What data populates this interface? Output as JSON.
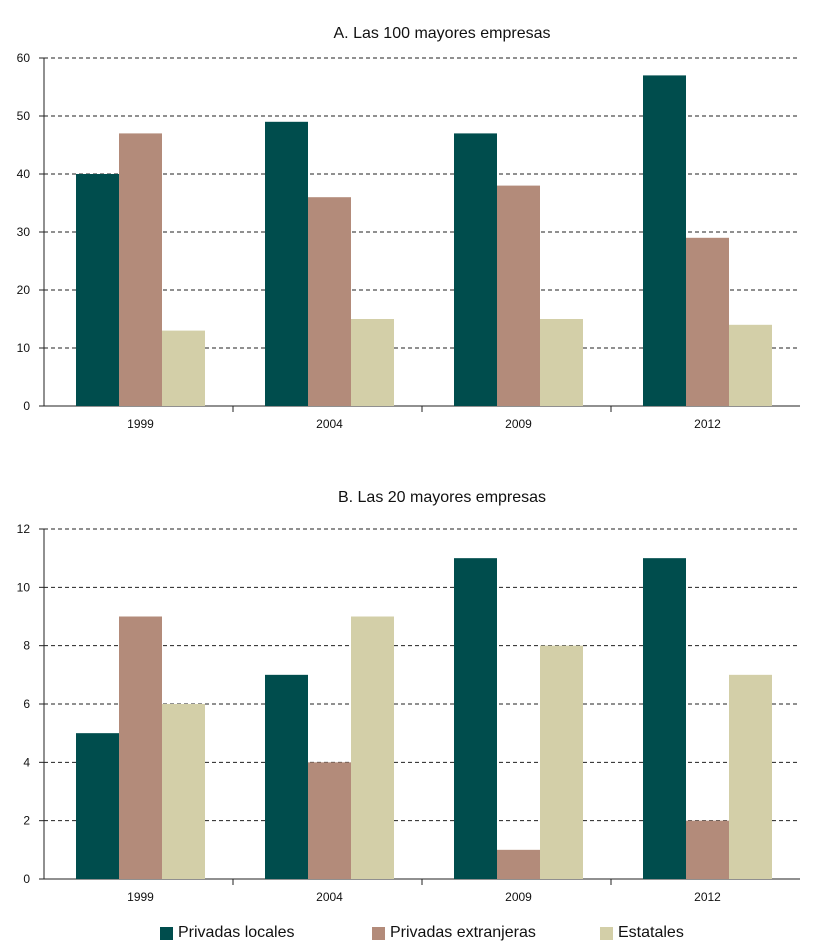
{
  "colors": {
    "privadas_locales": "#004d4d",
    "privadas_extranjeras": "#b38b7a",
    "estatales": "#d3cfa8"
  },
  "legend": {
    "items": [
      {
        "label": "Privadas locales",
        "color_key": "privadas_locales"
      },
      {
        "label": "Privadas extranjeras",
        "color_key": "privadas_extranjeras"
      },
      {
        "label": "Estatales",
        "color_key": "estatales"
      }
    ]
  },
  "chart_data": [
    {
      "type": "bar",
      "title": "A. Las 100 mayores empresas",
      "categories": [
        "1999",
        "2004",
        "2009",
        "2012"
      ],
      "series": [
        {
          "name": "Privadas locales",
          "values": [
            40,
            49,
            47,
            57
          ]
        },
        {
          "name": "Privadas extranjeras",
          "values": [
            47,
            36,
            38,
            29
          ]
        },
        {
          "name": "Estatales",
          "values": [
            13,
            15,
            15,
            14
          ]
        }
      ],
      "ylim": [
        0,
        60
      ],
      "yticks": [
        0,
        10,
        20,
        30,
        40,
        50,
        60
      ],
      "grid": true
    },
    {
      "type": "bar",
      "title": "B. Las 20 mayores empresas",
      "categories": [
        "1999",
        "2004",
        "2009",
        "2012"
      ],
      "series": [
        {
          "name": "Privadas locales",
          "values": [
            5,
            7,
            11,
            11
          ]
        },
        {
          "name": "Privadas extranjeras",
          "values": [
            9,
            4,
            1,
            2
          ]
        },
        {
          "name": "Estatales",
          "values": [
            6,
            9,
            8,
            7
          ]
        }
      ],
      "ylim": [
        0,
        12
      ],
      "yticks": [
        0,
        2,
        4,
        6,
        8,
        10,
        12
      ],
      "grid": true
    }
  ]
}
